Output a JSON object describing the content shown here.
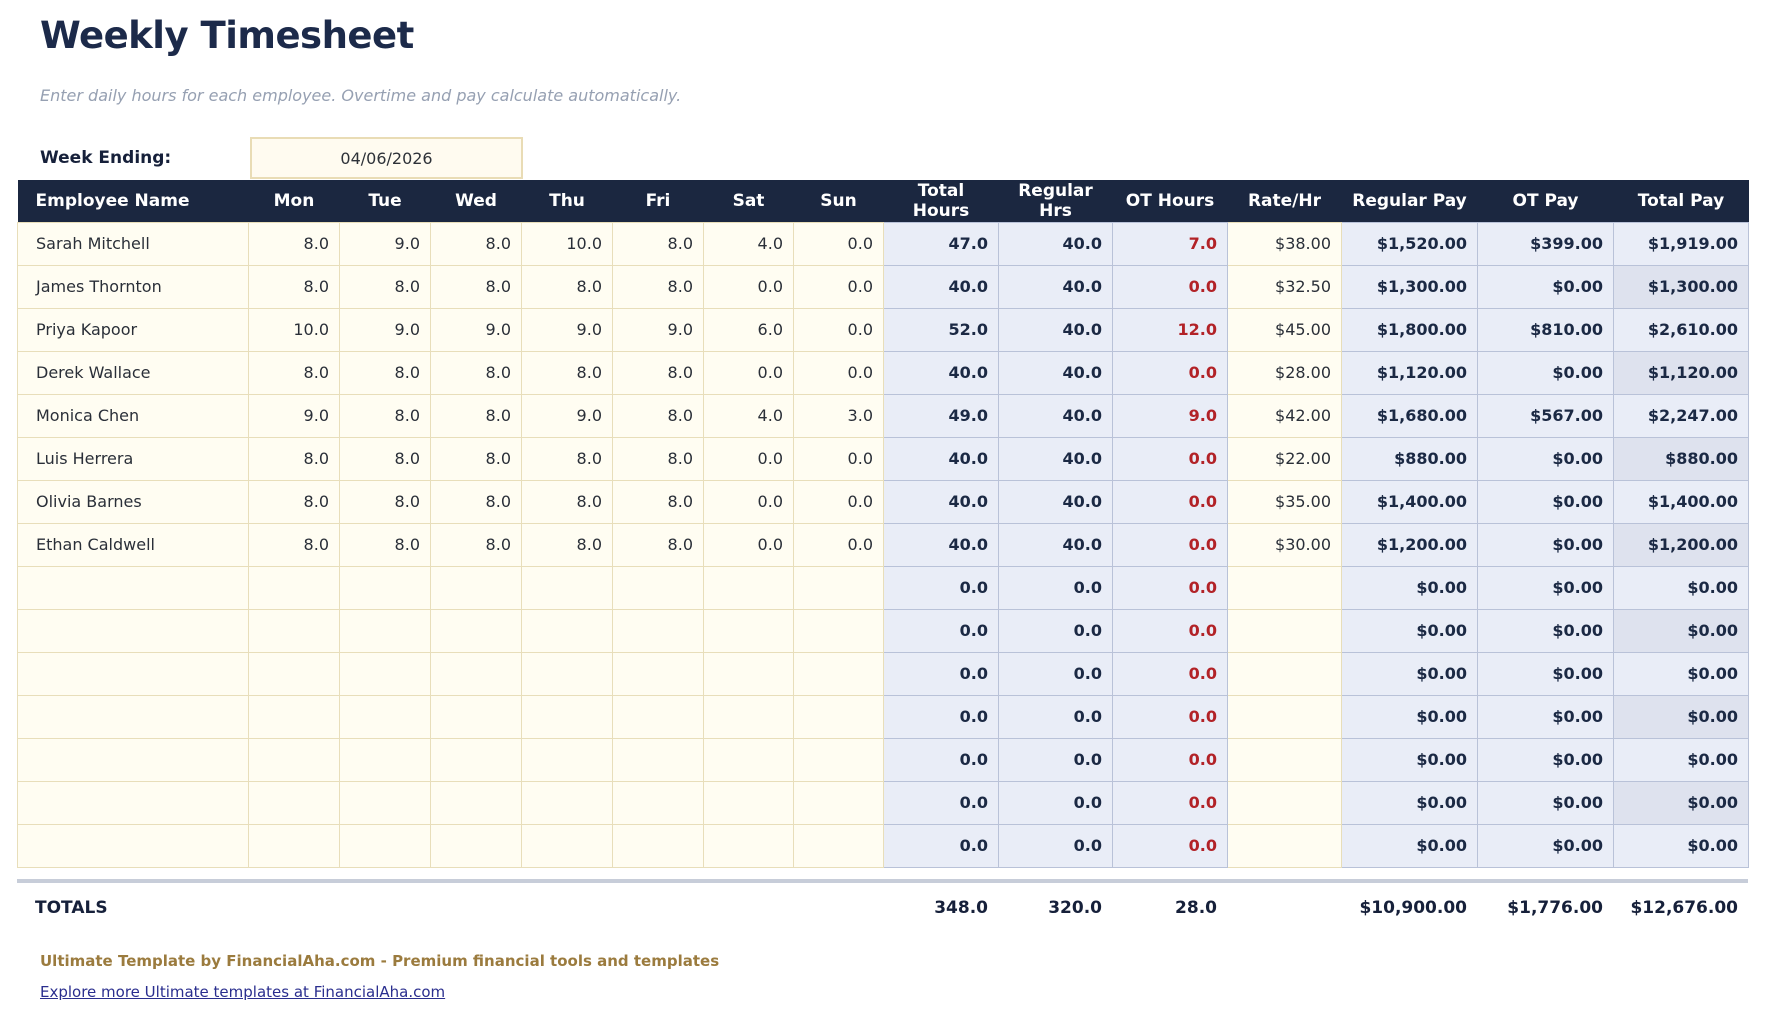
{
  "page": {
    "title": "Weekly Timesheet",
    "subtitle": "Enter daily hours for each employee. Overtime and pay calculate automatically.",
    "week_ending_label": "Week Ending:",
    "week_ending_value": "04/06/2026"
  },
  "colors": {
    "header_bg": "#1b2740",
    "input_cell_bg": "#fffdf2",
    "calc_cell_bg": "#e9edf7",
    "calc_cell_alt_bg": "#dee2ee",
    "ot_red": "#b22227",
    "navy_text": "#1b2944",
    "footer_brand": "#9b7b3e",
    "link_blue": "#2a2e8e"
  },
  "table": {
    "columns": [
      "Employee Name",
      "Mon",
      "Tue",
      "Wed",
      "Thu",
      "Fri",
      "Sat",
      "Sun",
      "Total Hours",
      "Regular Hrs",
      "OT Hours",
      "Rate/Hr",
      "Regular Pay",
      "OT Pay",
      "Total Pay"
    ],
    "rows": [
      {
        "name": "Sarah Mitchell",
        "days": [
          "8.0",
          "9.0",
          "8.0",
          "10.0",
          "8.0",
          "4.0",
          "0.0"
        ],
        "total_hours": "47.0",
        "regular_hrs": "40.0",
        "ot_hours": "7.0",
        "rate": "$38.00",
        "regular_pay": "$1,520.00",
        "ot_pay": "$399.00",
        "total_pay": "$1,919.00"
      },
      {
        "name": "James Thornton",
        "days": [
          "8.0",
          "8.0",
          "8.0",
          "8.0",
          "8.0",
          "0.0",
          "0.0"
        ],
        "total_hours": "40.0",
        "regular_hrs": "40.0",
        "ot_hours": "0.0",
        "rate": "$32.50",
        "regular_pay": "$1,300.00",
        "ot_pay": "$0.00",
        "total_pay": "$1,300.00"
      },
      {
        "name": "Priya Kapoor",
        "days": [
          "10.0",
          "9.0",
          "9.0",
          "9.0",
          "9.0",
          "6.0",
          "0.0"
        ],
        "total_hours": "52.0",
        "regular_hrs": "40.0",
        "ot_hours": "12.0",
        "rate": "$45.00",
        "regular_pay": "$1,800.00",
        "ot_pay": "$810.00",
        "total_pay": "$2,610.00"
      },
      {
        "name": "Derek Wallace",
        "days": [
          "8.0",
          "8.0",
          "8.0",
          "8.0",
          "8.0",
          "0.0",
          "0.0"
        ],
        "total_hours": "40.0",
        "regular_hrs": "40.0",
        "ot_hours": "0.0",
        "rate": "$28.00",
        "regular_pay": "$1,120.00",
        "ot_pay": "$0.00",
        "total_pay": "$1,120.00"
      },
      {
        "name": "Monica Chen",
        "days": [
          "9.0",
          "8.0",
          "8.0",
          "9.0",
          "8.0",
          "4.0",
          "3.0"
        ],
        "total_hours": "49.0",
        "regular_hrs": "40.0",
        "ot_hours": "9.0",
        "rate": "$42.00",
        "regular_pay": "$1,680.00",
        "ot_pay": "$567.00",
        "total_pay": "$2,247.00"
      },
      {
        "name": "Luis Herrera",
        "days": [
          "8.0",
          "8.0",
          "8.0",
          "8.0",
          "8.0",
          "0.0",
          "0.0"
        ],
        "total_hours": "40.0",
        "regular_hrs": "40.0",
        "ot_hours": "0.0",
        "rate": "$22.00",
        "regular_pay": "$880.00",
        "ot_pay": "$0.00",
        "total_pay": "$880.00"
      },
      {
        "name": "Olivia Barnes",
        "days": [
          "8.0",
          "8.0",
          "8.0",
          "8.0",
          "8.0",
          "0.0",
          "0.0"
        ],
        "total_hours": "40.0",
        "regular_hrs": "40.0",
        "ot_hours": "0.0",
        "rate": "$35.00",
        "regular_pay": "$1,400.00",
        "ot_pay": "$0.00",
        "total_pay": "$1,400.00"
      },
      {
        "name": "Ethan Caldwell",
        "days": [
          "8.0",
          "8.0",
          "8.0",
          "8.0",
          "8.0",
          "0.0",
          "0.0"
        ],
        "total_hours": "40.0",
        "regular_hrs": "40.0",
        "ot_hours": "0.0",
        "rate": "$30.00",
        "regular_pay": "$1,200.00",
        "ot_pay": "$0.00",
        "total_pay": "$1,200.00"
      },
      {
        "name": "",
        "days": [
          "",
          "",
          "",
          "",
          "",
          "",
          ""
        ],
        "total_hours": "0.0",
        "regular_hrs": "0.0",
        "ot_hours": "0.0",
        "rate": "",
        "regular_pay": "$0.00",
        "ot_pay": "$0.00",
        "total_pay": "$0.00"
      },
      {
        "name": "",
        "days": [
          "",
          "",
          "",
          "",
          "",
          "",
          ""
        ],
        "total_hours": "0.0",
        "regular_hrs": "0.0",
        "ot_hours": "0.0",
        "rate": "",
        "regular_pay": "$0.00",
        "ot_pay": "$0.00",
        "total_pay": "$0.00"
      },
      {
        "name": "",
        "days": [
          "",
          "",
          "",
          "",
          "",
          "",
          ""
        ],
        "total_hours": "0.0",
        "regular_hrs": "0.0",
        "ot_hours": "0.0",
        "rate": "",
        "regular_pay": "$0.00",
        "ot_pay": "$0.00",
        "total_pay": "$0.00"
      },
      {
        "name": "",
        "days": [
          "",
          "",
          "",
          "",
          "",
          "",
          ""
        ],
        "total_hours": "0.0",
        "regular_hrs": "0.0",
        "ot_hours": "0.0",
        "rate": "",
        "regular_pay": "$0.00",
        "ot_pay": "$0.00",
        "total_pay": "$0.00"
      },
      {
        "name": "",
        "days": [
          "",
          "",
          "",
          "",
          "",
          "",
          ""
        ],
        "total_hours": "0.0",
        "regular_hrs": "0.0",
        "ot_hours": "0.0",
        "rate": "",
        "regular_pay": "$0.00",
        "ot_pay": "$0.00",
        "total_pay": "$0.00"
      },
      {
        "name": "",
        "days": [
          "",
          "",
          "",
          "",
          "",
          "",
          ""
        ],
        "total_hours": "0.0",
        "regular_hrs": "0.0",
        "ot_hours": "0.0",
        "rate": "",
        "regular_pay": "$0.00",
        "ot_pay": "$0.00",
        "total_pay": "$0.00"
      },
      {
        "name": "",
        "days": [
          "",
          "",
          "",
          "",
          "",
          "",
          ""
        ],
        "total_hours": "0.0",
        "regular_hrs": "0.0",
        "ot_hours": "0.0",
        "rate": "",
        "regular_pay": "$0.00",
        "ot_pay": "$0.00",
        "total_pay": "$0.00"
      }
    ],
    "totals": {
      "label": "TOTALS",
      "total_hours": "348.0",
      "regular_hrs": "320.0",
      "ot_hours": "28.0",
      "regular_pay": "$10,900.00",
      "ot_pay": "$1,776.00",
      "total_pay": "$12,676.00"
    }
  },
  "footer": {
    "branding": "Ultimate Template by FinancialAha.com - Premium financial tools and templates",
    "link": "Explore more Ultimate templates at FinancialAha.com"
  }
}
